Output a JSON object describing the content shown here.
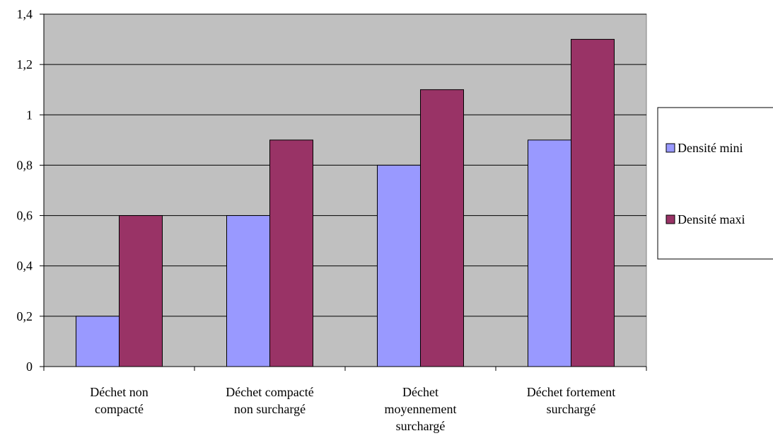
{
  "chart_data": {
    "type": "bar",
    "categories": [
      [
        "Déchet non",
        "compacté"
      ],
      [
        "Déchet compacté",
        "non surchargé"
      ],
      [
        "Déchet",
        "moyennement",
        "surchargé"
      ],
      [
        "Déchet fortement",
        "surchargé"
      ]
    ],
    "series": [
      {
        "name": "Densité mini",
        "values": [
          0.2,
          0.6,
          0.8,
          0.9
        ],
        "color": "#9999ff"
      },
      {
        "name": "Densité maxi",
        "values": [
          0.6,
          0.9,
          1.1,
          1.3
        ],
        "color": "#993366"
      }
    ],
    "ylim": [
      0,
      1.4
    ],
    "yticks": [
      "0",
      "0,2",
      "0,4",
      "0,6",
      "0,8",
      "1",
      "1,2",
      "1,4"
    ],
    "grid": true,
    "plot_background": "#c0c0c0",
    "legend_position": "right",
    "title": "",
    "xlabel": "",
    "ylabel": ""
  }
}
